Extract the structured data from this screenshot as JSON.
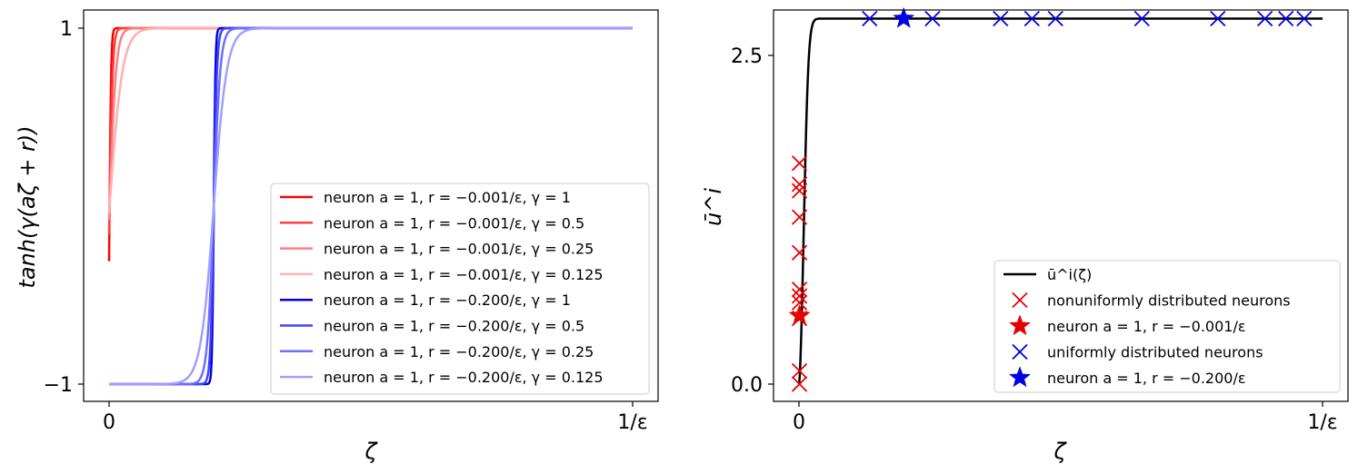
{
  "chart_data": [
    {
      "type": "line",
      "ylabel": "tanh(γ(aζ + r))",
      "xlabel": "ζ",
      "x_range": [
        0,
        1
      ],
      "y_range": [
        -1,
        1
      ],
      "xticks": [
        {
          "value": 0,
          "label": "0"
        },
        {
          "value": 1,
          "label": "1/ε"
        }
      ],
      "yticks": [
        {
          "value": -1,
          "label": "−1"
        },
        {
          "value": 1,
          "label": "1"
        }
      ],
      "legend_position": "lower-right",
      "series": [
        {
          "name": "neuron a = 1, r = −0.001/ε, γ = 1",
          "color": "#ff0000",
          "r": -0.001,
          "gamma": 1
        },
        {
          "name": "neuron a = 1, r = −0.001/ε, γ = 0.5",
          "color": "#ff3f3f",
          "r": -0.001,
          "gamma": 0.5
        },
        {
          "name": "neuron a = 1, r = −0.001/ε, γ = 0.25",
          "color": "#ff7f7f",
          "r": -0.001,
          "gamma": 0.25
        },
        {
          "name": "neuron a = 1, r = −0.001/ε, γ = 0.125",
          "color": "#ffafaf",
          "r": -0.001,
          "gamma": 0.125
        },
        {
          "name": "neuron a = 1, r = −0.200/ε, γ = 1",
          "color": "#0000e6",
          "r": -0.2,
          "gamma": 1
        },
        {
          "name": "neuron a = 1, r = −0.200/ε, γ = 0.5",
          "color": "#3f3fff",
          "r": -0.2,
          "gamma": 0.5
        },
        {
          "name": "neuron a = 1, r = −0.200/ε, γ = 0.25",
          "color": "#6f6fff",
          "r": -0.2,
          "gamma": 0.25
        },
        {
          "name": "neuron a = 1, r = −0.200/ε, γ = 0.125",
          "color": "#a0a0ff",
          "r": -0.2,
          "gamma": 0.125
        }
      ]
    },
    {
      "type": "scatter",
      "ylabel": "ū^i",
      "xlabel": "ζ",
      "x_range": [
        0,
        1
      ],
      "y_range": [
        0,
        2.8
      ],
      "xticks": [
        {
          "value": 0,
          "label": "0"
        },
        {
          "value": 1,
          "label": "1/ε"
        }
      ],
      "yticks": [
        {
          "value": 0,
          "label": "0.0"
        },
        {
          "value": 2.5,
          "label": "2.5"
        }
      ],
      "legend_position": "lower-right",
      "curve": {
        "name": "ū^i(ζ)",
        "color": "#000000",
        "plateau": 2.78
      },
      "series": [
        {
          "name": "nonuniformly distributed neurons",
          "marker": "x",
          "color": "#e60000",
          "points": [
            [
              0.001,
              0.0
            ],
            [
              0.001,
              0.1
            ],
            [
              0.001,
              0.5
            ],
            [
              0.001,
              0.62
            ],
            [
              0.001,
              0.67
            ],
            [
              0.001,
              0.72
            ],
            [
              0.001,
              1.0
            ],
            [
              0.001,
              1.27
            ],
            [
              0.001,
              1.47
            ],
            [
              0.001,
              1.52
            ],
            [
              0.001,
              1.68
            ]
          ]
        },
        {
          "name": "neuron a = 1, r = −0.001/ε",
          "marker": "star",
          "color": "#e60000",
          "points": [
            [
              0.001,
              0.52
            ]
          ]
        },
        {
          "name": "uniformly distributed neurons",
          "marker": "x",
          "color": "#0000e6",
          "points": [
            [
              0.135,
              2.78
            ],
            [
              0.255,
              2.78
            ],
            [
              0.385,
              2.78
            ],
            [
              0.445,
              2.78
            ],
            [
              0.49,
              2.78
            ],
            [
              0.655,
              2.78
            ],
            [
              0.8,
              2.78
            ],
            [
              0.89,
              2.78
            ],
            [
              0.93,
              2.78
            ],
            [
              0.965,
              2.78
            ]
          ]
        },
        {
          "name": "neuron a = 1, r = −0.200/ε",
          "marker": "star",
          "color": "#0000e6",
          "points": [
            [
              0.2,
              2.78
            ]
          ]
        }
      ]
    }
  ]
}
